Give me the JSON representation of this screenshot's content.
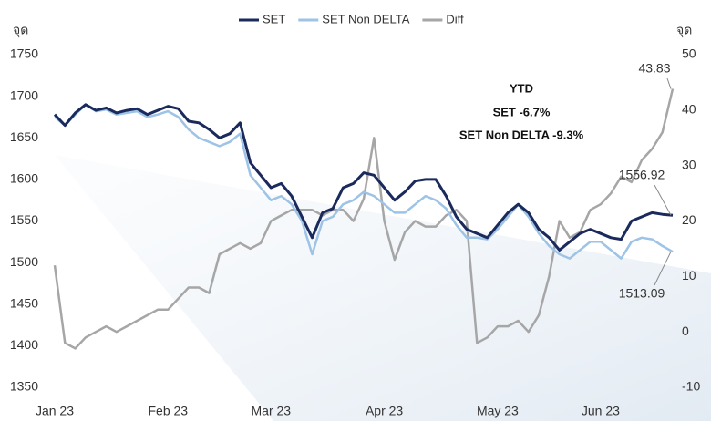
{
  "chart_data": {
    "type": "line",
    "y_unit": "จุด",
    "y2_unit": "จุด",
    "annotation": [
      "YTD",
      "SET -6.7%",
      "SET Non DELTA -9.3%"
    ],
    "categories": [
      "Jan 23",
      null,
      null,
      null,
      null,
      null,
      null,
      null,
      null,
      null,
      null,
      "Feb 23",
      null,
      null,
      null,
      null,
      null,
      null,
      null,
      null,
      null,
      "Mar 23",
      null,
      null,
      null,
      null,
      null,
      null,
      null,
      null,
      null,
      null,
      "Apr 23",
      null,
      null,
      null,
      null,
      null,
      null,
      null,
      null,
      null,
      null,
      "May 23",
      null,
      null,
      null,
      null,
      null,
      null,
      null,
      null,
      null,
      "Jun 23",
      null,
      null,
      null,
      null,
      null,
      null,
      null
    ],
    "series": [
      {
        "name": "SET",
        "color": "#1b2a5c",
        "axis": "y",
        "values": [
          1678,
          1665,
          1680,
          1690,
          1683,
          1686,
          1680,
          1683,
          1685,
          1678,
          1683,
          1688,
          1685,
          1670,
          1668,
          1660,
          1650,
          1655,
          1668,
          1620,
          1605,
          1590,
          1595,
          1580,
          1555,
          1530,
          1560,
          1565,
          1590,
          1595,
          1608,
          1605,
          1590,
          1575,
          1585,
          1598,
          1600,
          1600,
          1580,
          1555,
          1540,
          1535,
          1530,
          1545,
          1560,
          1570,
          1560,
          1540,
          1530,
          1515,
          1525,
          1535,
          1540,
          1535,
          1530,
          1528,
          1550,
          1555,
          1560,
          1558,
          1556.92
        ]
      },
      {
        "name": "SET Non DELTA",
        "color": "#9dc3e6",
        "axis": "y",
        "values": [
          1675,
          1665,
          1678,
          1690,
          1682,
          1684,
          1678,
          1680,
          1682,
          1675,
          1678,
          1682,
          1675,
          1660,
          1650,
          1645,
          1640,
          1645,
          1655,
          1605,
          1590,
          1575,
          1580,
          1570,
          1550,
          1510,
          1550,
          1555,
          1570,
          1575,
          1585,
          1580,
          1570,
          1560,
          1560,
          1570,
          1580,
          1575,
          1565,
          1545,
          1530,
          1530,
          1528,
          1540,
          1555,
          1570,
          1555,
          1535,
          1520,
          1510,
          1505,
          1515,
          1525,
          1525,
          1515,
          1505,
          1525,
          1530,
          1528,
          1520,
          1513.09
        ]
      },
      {
        "name": "Diff",
        "color": "#a6a6a6",
        "axis": "y2",
        "values": [
          12,
          -2,
          -3,
          -1,
          0,
          1,
          0,
          1,
          2,
          3,
          4,
          4,
          6,
          8,
          8,
          7,
          14,
          15,
          16,
          15,
          16,
          20,
          21,
          22,
          22,
          22,
          21,
          22,
          22,
          20,
          24,
          35,
          20,
          13,
          18,
          20,
          19,
          19,
          21,
          22,
          20,
          -2,
          -1,
          1,
          1,
          2,
          0,
          3,
          10,
          20,
          17,
          18,
          22,
          23,
          25,
          28,
          27,
          31,
          33,
          36,
          43.83
        ]
      }
    ],
    "ylim": [
      1350,
      1750
    ],
    "yticks": [
      1350,
      1400,
      1450,
      1500,
      1550,
      1600,
      1650,
      1700,
      1750
    ],
    "y2lim": [
      -10,
      50
    ],
    "y2ticks": [
      -10,
      0,
      10,
      20,
      30,
      40,
      50
    ],
    "grid": false,
    "legend": "top"
  }
}
